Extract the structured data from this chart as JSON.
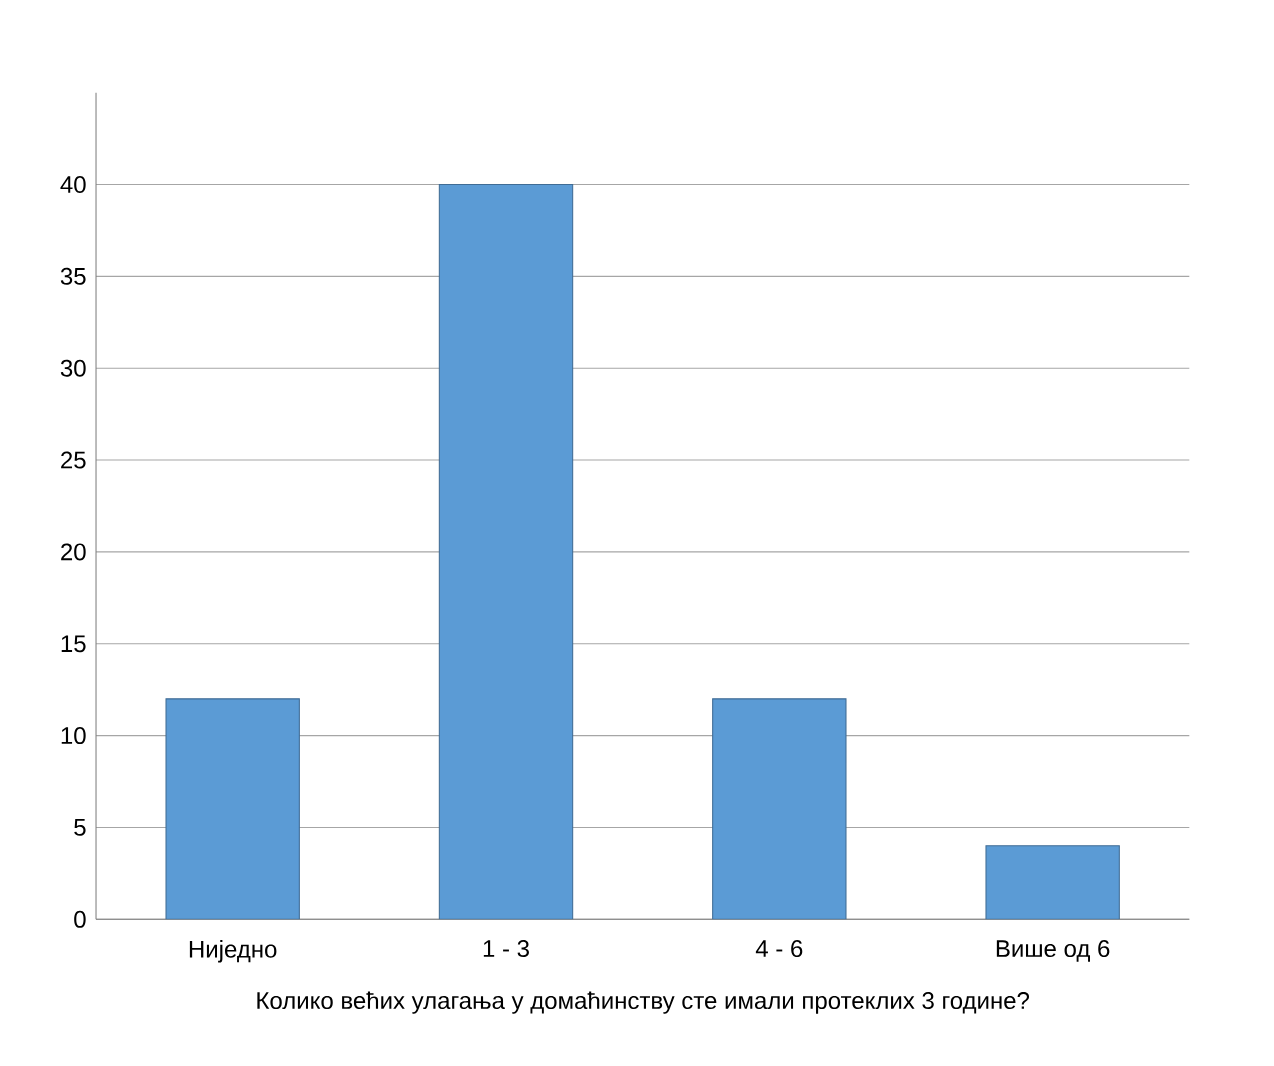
{
  "chart_data": {
    "type": "bar",
    "categories": [
      "Ниједно",
      "1 - 3",
      "4 - 6",
      "Више од 6"
    ],
    "values": [
      12,
      40,
      12,
      4
    ],
    "color": "#5b9bd5",
    "xlabel": "Колико већих улагања у домаћинству сте имали протеклих 3 године?",
    "ylim": [
      0,
      45
    ],
    "yticks": [
      0,
      5,
      10,
      15,
      20,
      25,
      30,
      35,
      40
    ],
    "grid": "y"
  }
}
